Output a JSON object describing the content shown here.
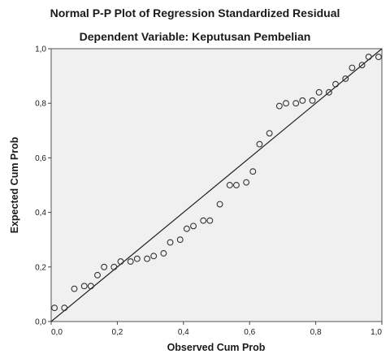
{
  "chart_data": {
    "type": "scatter",
    "title": "Normal P-P Plot of Regression Standardized Residual",
    "subtitle": "Dependent Variable: Keputusan Pembelian",
    "xlabel": "Observed Cum Prob",
    "ylabel": "Expected Cum Prob",
    "xlim": [
      0,
      1
    ],
    "ylim": [
      0,
      1
    ],
    "x_ticks": [
      "0,0",
      "0,2",
      "0,4",
      "0,6",
      "0,8",
      "1,0"
    ],
    "y_ticks": [
      "0,0",
      "0,2",
      "0,4",
      "0,6",
      "0,8",
      "1,0"
    ],
    "reference_line": {
      "from": [
        0,
        0
      ],
      "to": [
        1,
        1
      ]
    },
    "grid": false,
    "legend": "none",
    "colors": {
      "plot_background": "#f0f0f0",
      "marker_stroke": "#333333",
      "line": "#222222"
    },
    "points": [
      {
        "x": 0.01,
        "y": 0.05
      },
      {
        "x": 0.04,
        "y": 0.05
      },
      {
        "x": 0.07,
        "y": 0.12
      },
      {
        "x": 0.1,
        "y": 0.13
      },
      {
        "x": 0.12,
        "y": 0.13
      },
      {
        "x": 0.14,
        "y": 0.17
      },
      {
        "x": 0.16,
        "y": 0.2
      },
      {
        "x": 0.19,
        "y": 0.2
      },
      {
        "x": 0.21,
        "y": 0.22
      },
      {
        "x": 0.24,
        "y": 0.22
      },
      {
        "x": 0.26,
        "y": 0.23
      },
      {
        "x": 0.29,
        "y": 0.23
      },
      {
        "x": 0.31,
        "y": 0.24
      },
      {
        "x": 0.34,
        "y": 0.25
      },
      {
        "x": 0.36,
        "y": 0.29
      },
      {
        "x": 0.39,
        "y": 0.3
      },
      {
        "x": 0.41,
        "y": 0.34
      },
      {
        "x": 0.43,
        "y": 0.35
      },
      {
        "x": 0.46,
        "y": 0.37
      },
      {
        "x": 0.48,
        "y": 0.37
      },
      {
        "x": 0.51,
        "y": 0.43
      },
      {
        "x": 0.54,
        "y": 0.5
      },
      {
        "x": 0.56,
        "y": 0.5
      },
      {
        "x": 0.59,
        "y": 0.51
      },
      {
        "x": 0.61,
        "y": 0.55
      },
      {
        "x": 0.63,
        "y": 0.65
      },
      {
        "x": 0.66,
        "y": 0.69
      },
      {
        "x": 0.69,
        "y": 0.79
      },
      {
        "x": 0.71,
        "y": 0.8
      },
      {
        "x": 0.74,
        "y": 0.8
      },
      {
        "x": 0.76,
        "y": 0.81
      },
      {
        "x": 0.79,
        "y": 0.81
      },
      {
        "x": 0.81,
        "y": 0.84
      },
      {
        "x": 0.84,
        "y": 0.84
      },
      {
        "x": 0.86,
        "y": 0.87
      },
      {
        "x": 0.89,
        "y": 0.89
      },
      {
        "x": 0.91,
        "y": 0.93
      },
      {
        "x": 0.94,
        "y": 0.94
      },
      {
        "x": 0.96,
        "y": 0.97
      },
      {
        "x": 0.99,
        "y": 0.97
      }
    ]
  }
}
